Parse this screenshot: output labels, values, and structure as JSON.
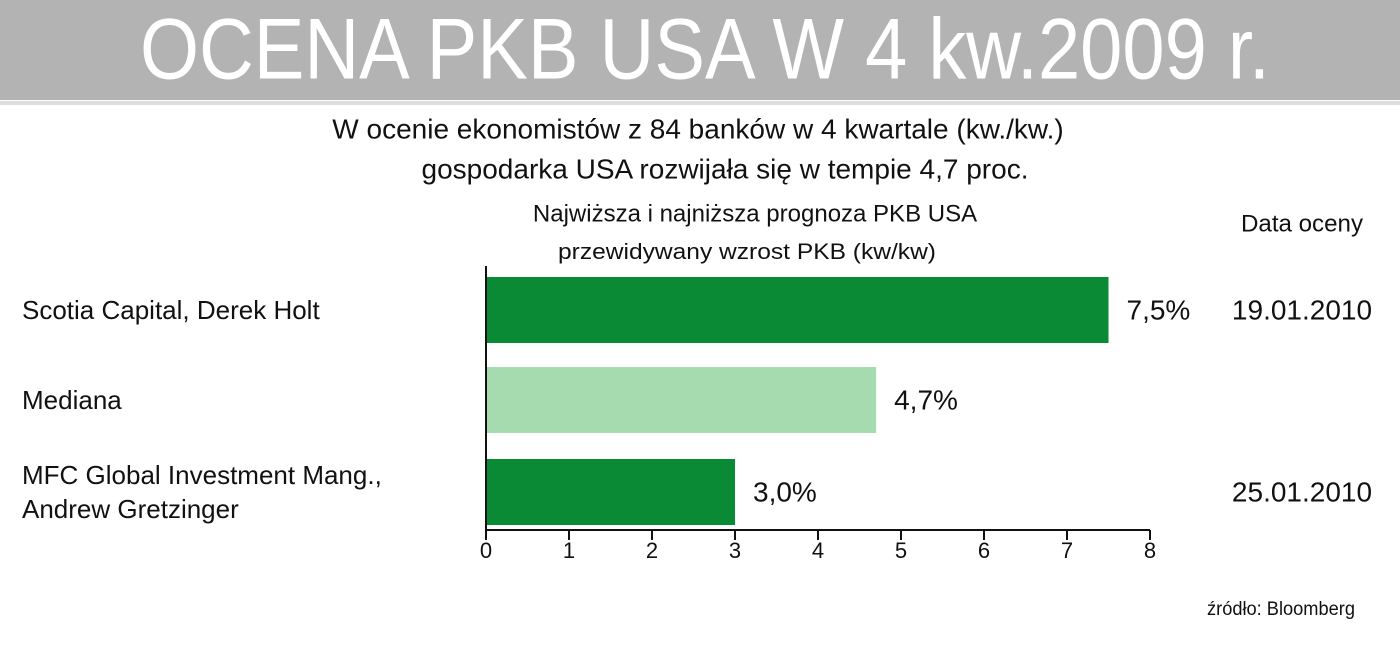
{
  "chart_data": {
    "type": "bar",
    "title": "OCENA PKB USA W 4 kw.2009 r.",
    "subtitle": [
      "W ocenie ekonomistów z 84 banków w 4 kwartale (kw./kw.)",
      "gospodarka USA rozwijała się w tempie 4,7 proc."
    ],
    "chart_title": "Najwiższa i najniższa prognoza PKB USA",
    "x_label": "przewidywany wzrost PKB (kw/kw)",
    "date_header": "Data oceny",
    "categories": [
      "Scotia Capital, Derek Holt",
      "Mediana",
      "MFC Global Investment Mang., Andrew Gretzinger"
    ],
    "values": [
      7.5,
      4.7,
      3.0
    ],
    "value_labels": [
      "7,5%",
      "4,7%",
      "3,0%"
    ],
    "colors": [
      "#0a8a35",
      "#a6dbb0",
      "#0a8a35"
    ],
    "dates": [
      "19.01.2010",
      null,
      "25.01.2010"
    ],
    "xlim": [
      0,
      8
    ],
    "xticks": [
      0,
      1,
      2,
      3,
      4,
      5,
      6,
      7,
      8
    ],
    "source": "źródło: Bloomberg"
  }
}
